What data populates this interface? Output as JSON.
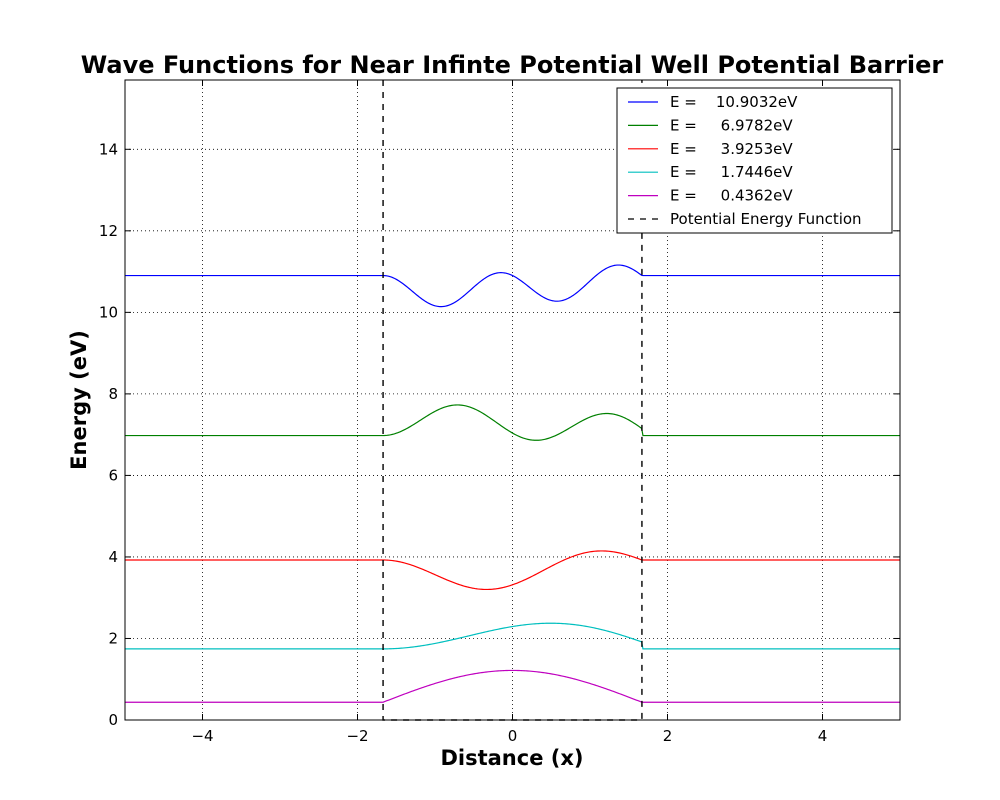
{
  "chart_data": {
    "type": "line",
    "title": "Wave Functions for Near Infinte Potential Well Potential Barrier",
    "xlabel": "Distance (x)",
    "ylabel": "Energy (eV)",
    "xlim": [
      -5,
      5
    ],
    "ylim": [
      0,
      15.7
    ],
    "xticks": [
      -4,
      -2,
      0,
      2,
      4
    ],
    "xtick_labels": [
      "−4",
      "−2",
      "0",
      "2",
      "4"
    ],
    "yticks": [
      0,
      2,
      4,
      6,
      8,
      10,
      12,
      14
    ],
    "ytick_labels": [
      "0",
      "2",
      "4",
      "6",
      "8",
      "10",
      "12",
      "14"
    ],
    "grid": true,
    "legend_position": "top-right",
    "well": {
      "x_min": -1.67,
      "x_max": 1.67
    },
    "series": [
      {
        "name": "E =    10.9032eV",
        "energy": 10.9032,
        "amplitude": 0.78,
        "shape": "n4",
        "color": "#0000ff"
      },
      {
        "name": "E =     6.9782eV",
        "energy": 6.9782,
        "amplitude": 0.78,
        "shape": "n3",
        "color": "#008000"
      },
      {
        "name": "E =     3.9253eV",
        "energy": 3.9253,
        "amplitude": 0.78,
        "shape": "n2",
        "color": "#ff0000"
      },
      {
        "name": "E =     1.7446eV",
        "energy": 1.7446,
        "amplitude": 0.78,
        "shape": "n1",
        "color": "#00bfbf"
      },
      {
        "name": "E =     0.4362eV",
        "energy": 0.4362,
        "amplitude": 0.78,
        "shape": "n0",
        "color": "#bf00bf"
      }
    ],
    "potential": {
      "name": "Potential Energy Function",
      "color": "#000000",
      "style": "dashed",
      "x": [
        -1.67,
        -1.67,
        1.67,
        1.67
      ],
      "y": [
        15.7,
        0,
        0,
        15.7
      ]
    }
  }
}
